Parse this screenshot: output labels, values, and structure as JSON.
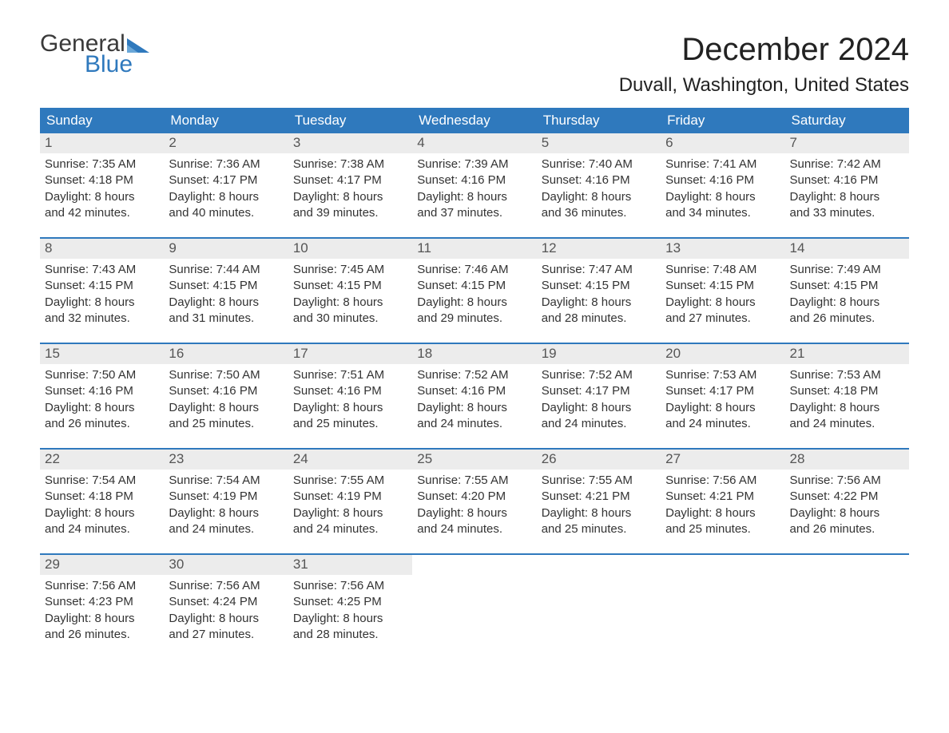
{
  "colors": {
    "header_bg": "#2f79bd",
    "header_text": "#ffffff",
    "daynum_bg": "#ececec",
    "daynum_text": "#555555",
    "body_text": "#333333",
    "week_border": "#2f79bd",
    "logo_gray": "#3a3a3a",
    "logo_blue": "#2f79bd",
    "page_bg": "#ffffff"
  },
  "logo": {
    "line1": "General",
    "line2": "Blue"
  },
  "title": "December 2024",
  "location": "Duvall, Washington, United States",
  "day_headers": [
    "Sunday",
    "Monday",
    "Tuesday",
    "Wednesday",
    "Thursday",
    "Friday",
    "Saturday"
  ],
  "weeks": [
    [
      {
        "n": "1",
        "sunrise": "Sunrise: 7:35 AM",
        "sunset": "Sunset: 4:18 PM",
        "d1": "Daylight: 8 hours",
        "d2": "and 42 minutes."
      },
      {
        "n": "2",
        "sunrise": "Sunrise: 7:36 AM",
        "sunset": "Sunset: 4:17 PM",
        "d1": "Daylight: 8 hours",
        "d2": "and 40 minutes."
      },
      {
        "n": "3",
        "sunrise": "Sunrise: 7:38 AM",
        "sunset": "Sunset: 4:17 PM",
        "d1": "Daylight: 8 hours",
        "d2": "and 39 minutes."
      },
      {
        "n": "4",
        "sunrise": "Sunrise: 7:39 AM",
        "sunset": "Sunset: 4:16 PM",
        "d1": "Daylight: 8 hours",
        "d2": "and 37 minutes."
      },
      {
        "n": "5",
        "sunrise": "Sunrise: 7:40 AM",
        "sunset": "Sunset: 4:16 PM",
        "d1": "Daylight: 8 hours",
        "d2": "and 36 minutes."
      },
      {
        "n": "6",
        "sunrise": "Sunrise: 7:41 AM",
        "sunset": "Sunset: 4:16 PM",
        "d1": "Daylight: 8 hours",
        "d2": "and 34 minutes."
      },
      {
        "n": "7",
        "sunrise": "Sunrise: 7:42 AM",
        "sunset": "Sunset: 4:16 PM",
        "d1": "Daylight: 8 hours",
        "d2": "and 33 minutes."
      }
    ],
    [
      {
        "n": "8",
        "sunrise": "Sunrise: 7:43 AM",
        "sunset": "Sunset: 4:15 PM",
        "d1": "Daylight: 8 hours",
        "d2": "and 32 minutes."
      },
      {
        "n": "9",
        "sunrise": "Sunrise: 7:44 AM",
        "sunset": "Sunset: 4:15 PM",
        "d1": "Daylight: 8 hours",
        "d2": "and 31 minutes."
      },
      {
        "n": "10",
        "sunrise": "Sunrise: 7:45 AM",
        "sunset": "Sunset: 4:15 PM",
        "d1": "Daylight: 8 hours",
        "d2": "and 30 minutes."
      },
      {
        "n": "11",
        "sunrise": "Sunrise: 7:46 AM",
        "sunset": "Sunset: 4:15 PM",
        "d1": "Daylight: 8 hours",
        "d2": "and 29 minutes."
      },
      {
        "n": "12",
        "sunrise": "Sunrise: 7:47 AM",
        "sunset": "Sunset: 4:15 PM",
        "d1": "Daylight: 8 hours",
        "d2": "and 28 minutes."
      },
      {
        "n": "13",
        "sunrise": "Sunrise: 7:48 AM",
        "sunset": "Sunset: 4:15 PM",
        "d1": "Daylight: 8 hours",
        "d2": "and 27 minutes."
      },
      {
        "n": "14",
        "sunrise": "Sunrise: 7:49 AM",
        "sunset": "Sunset: 4:15 PM",
        "d1": "Daylight: 8 hours",
        "d2": "and 26 minutes."
      }
    ],
    [
      {
        "n": "15",
        "sunrise": "Sunrise: 7:50 AM",
        "sunset": "Sunset: 4:16 PM",
        "d1": "Daylight: 8 hours",
        "d2": "and 26 minutes."
      },
      {
        "n": "16",
        "sunrise": "Sunrise: 7:50 AM",
        "sunset": "Sunset: 4:16 PM",
        "d1": "Daylight: 8 hours",
        "d2": "and 25 minutes."
      },
      {
        "n": "17",
        "sunrise": "Sunrise: 7:51 AM",
        "sunset": "Sunset: 4:16 PM",
        "d1": "Daylight: 8 hours",
        "d2": "and 25 minutes."
      },
      {
        "n": "18",
        "sunrise": "Sunrise: 7:52 AM",
        "sunset": "Sunset: 4:16 PM",
        "d1": "Daylight: 8 hours",
        "d2": "and 24 minutes."
      },
      {
        "n": "19",
        "sunrise": "Sunrise: 7:52 AM",
        "sunset": "Sunset: 4:17 PM",
        "d1": "Daylight: 8 hours",
        "d2": "and 24 minutes."
      },
      {
        "n": "20",
        "sunrise": "Sunrise: 7:53 AM",
        "sunset": "Sunset: 4:17 PM",
        "d1": "Daylight: 8 hours",
        "d2": "and 24 minutes."
      },
      {
        "n": "21",
        "sunrise": "Sunrise: 7:53 AM",
        "sunset": "Sunset: 4:18 PM",
        "d1": "Daylight: 8 hours",
        "d2": "and 24 minutes."
      }
    ],
    [
      {
        "n": "22",
        "sunrise": "Sunrise: 7:54 AM",
        "sunset": "Sunset: 4:18 PM",
        "d1": "Daylight: 8 hours",
        "d2": "and 24 minutes."
      },
      {
        "n": "23",
        "sunrise": "Sunrise: 7:54 AM",
        "sunset": "Sunset: 4:19 PM",
        "d1": "Daylight: 8 hours",
        "d2": "and 24 minutes."
      },
      {
        "n": "24",
        "sunrise": "Sunrise: 7:55 AM",
        "sunset": "Sunset: 4:19 PM",
        "d1": "Daylight: 8 hours",
        "d2": "and 24 minutes."
      },
      {
        "n": "25",
        "sunrise": "Sunrise: 7:55 AM",
        "sunset": "Sunset: 4:20 PM",
        "d1": "Daylight: 8 hours",
        "d2": "and 24 minutes."
      },
      {
        "n": "26",
        "sunrise": "Sunrise: 7:55 AM",
        "sunset": "Sunset: 4:21 PM",
        "d1": "Daylight: 8 hours",
        "d2": "and 25 minutes."
      },
      {
        "n": "27",
        "sunrise": "Sunrise: 7:56 AM",
        "sunset": "Sunset: 4:21 PM",
        "d1": "Daylight: 8 hours",
        "d2": "and 25 minutes."
      },
      {
        "n": "28",
        "sunrise": "Sunrise: 7:56 AM",
        "sunset": "Sunset: 4:22 PM",
        "d1": "Daylight: 8 hours",
        "d2": "and 26 minutes."
      }
    ],
    [
      {
        "n": "29",
        "sunrise": "Sunrise: 7:56 AM",
        "sunset": "Sunset: 4:23 PM",
        "d1": "Daylight: 8 hours",
        "d2": "and 26 minutes."
      },
      {
        "n": "30",
        "sunrise": "Sunrise: 7:56 AM",
        "sunset": "Sunset: 4:24 PM",
        "d1": "Daylight: 8 hours",
        "d2": "and 27 minutes."
      },
      {
        "n": "31",
        "sunrise": "Sunrise: 7:56 AM",
        "sunset": "Sunset: 4:25 PM",
        "d1": "Daylight: 8 hours",
        "d2": "and 28 minutes."
      },
      {
        "empty": true
      },
      {
        "empty": true
      },
      {
        "empty": true
      },
      {
        "empty": true
      }
    ]
  ]
}
